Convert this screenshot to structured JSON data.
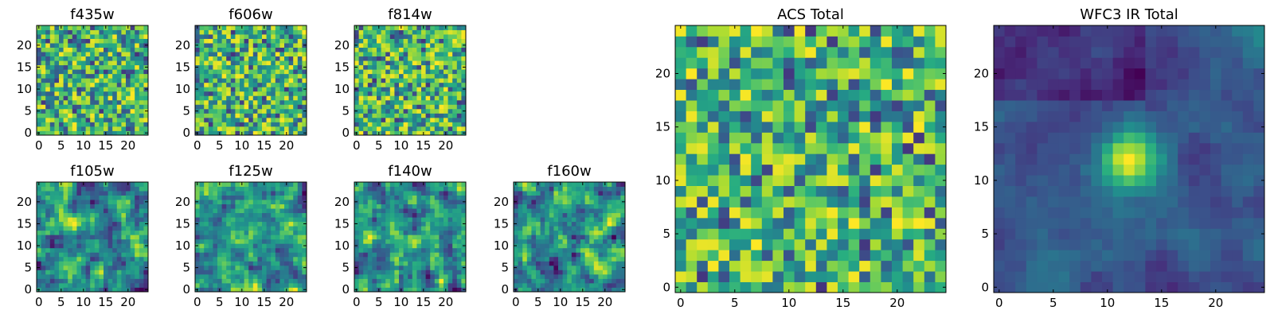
{
  "chart_data": [
    {
      "type": "heatmap",
      "title": "f435w",
      "x_ticks": [
        "0",
        "5",
        "10",
        "15",
        "20"
      ],
      "y_ticks": [
        "0",
        "5",
        "10",
        "15",
        "20"
      ],
      "xlim": [
        0,
        24
      ],
      "ylim": [
        0,
        24
      ],
      "grid": [
        25,
        25
      ],
      "colormap": "viridis",
      "pattern": "noise",
      "seed": 11
    },
    {
      "type": "heatmap",
      "title": "f606w",
      "x_ticks": [
        "0",
        "5",
        "10",
        "15",
        "20"
      ],
      "y_ticks": [
        "0",
        "5",
        "10",
        "15",
        "20"
      ],
      "xlim": [
        0,
        24
      ],
      "ylim": [
        0,
        24
      ],
      "grid": [
        25,
        25
      ],
      "colormap": "viridis",
      "pattern": "noise",
      "seed": 23
    },
    {
      "type": "heatmap",
      "title": "f814w",
      "x_ticks": [
        "0",
        "5",
        "10",
        "15",
        "20"
      ],
      "y_ticks": [
        "0",
        "5",
        "10",
        "15",
        "20"
      ],
      "xlim": [
        0,
        24
      ],
      "ylim": [
        0,
        24
      ],
      "grid": [
        25,
        25
      ],
      "colormap": "viridis",
      "pattern": "noise",
      "seed": 37
    },
    {
      "type": "heatmap",
      "title": "f105w",
      "x_ticks": [
        "0",
        "5",
        "10",
        "15",
        "20"
      ],
      "y_ticks": [
        "0",
        "5",
        "10",
        "15",
        "20"
      ],
      "xlim": [
        0,
        24
      ],
      "ylim": [
        0,
        24
      ],
      "grid": [
        25,
        25
      ],
      "colormap": "viridis",
      "pattern": "smooth",
      "seed": 41
    },
    {
      "type": "heatmap",
      "title": "f125w",
      "x_ticks": [
        "0",
        "5",
        "10",
        "15",
        "20"
      ],
      "y_ticks": [
        "0",
        "5",
        "10",
        "15",
        "20"
      ],
      "xlim": [
        0,
        24
      ],
      "ylim": [
        0,
        24
      ],
      "grid": [
        25,
        25
      ],
      "colormap": "viridis",
      "pattern": "smooth",
      "seed": 53
    },
    {
      "type": "heatmap",
      "title": "f140w",
      "x_ticks": [
        "0",
        "5",
        "10",
        "15",
        "20"
      ],
      "y_ticks": [
        "0",
        "5",
        "10",
        "15",
        "20"
      ],
      "xlim": [
        0,
        24
      ],
      "ylim": [
        0,
        24
      ],
      "grid": [
        25,
        25
      ],
      "colormap": "viridis",
      "pattern": "smooth",
      "seed": 67
    },
    {
      "type": "heatmap",
      "title": "f160w",
      "x_ticks": [
        "0",
        "5",
        "10",
        "15",
        "20"
      ],
      "y_ticks": [
        "0",
        "5",
        "10",
        "15",
        "20"
      ],
      "xlim": [
        0,
        24
      ],
      "ylim": [
        0,
        24
      ],
      "grid": [
        25,
        25
      ],
      "colormap": "viridis",
      "pattern": "smooth",
      "seed": 79
    },
    {
      "type": "heatmap",
      "title": "ACS Total",
      "x_ticks": [
        "0",
        "5",
        "10",
        "15",
        "20"
      ],
      "y_ticks": [
        "0",
        "5",
        "10",
        "15",
        "20"
      ],
      "xlim": [
        0,
        24
      ],
      "ylim": [
        0,
        24
      ],
      "grid": [
        25,
        25
      ],
      "colormap": "viridis",
      "pattern": "noise",
      "seed": 97
    },
    {
      "type": "heatmap",
      "title": "WFC3 IR Total",
      "x_ticks": [
        "0",
        "5",
        "10",
        "15",
        "20"
      ],
      "y_ticks": [
        "0",
        "5",
        "10",
        "15",
        "20"
      ],
      "xlim": [
        0,
        24
      ],
      "ylim": [
        0,
        24
      ],
      "grid": [
        25,
        25
      ],
      "colormap": "viridis",
      "pattern": "source",
      "source_center": [
        12,
        12
      ],
      "seed": 101
    }
  ]
}
